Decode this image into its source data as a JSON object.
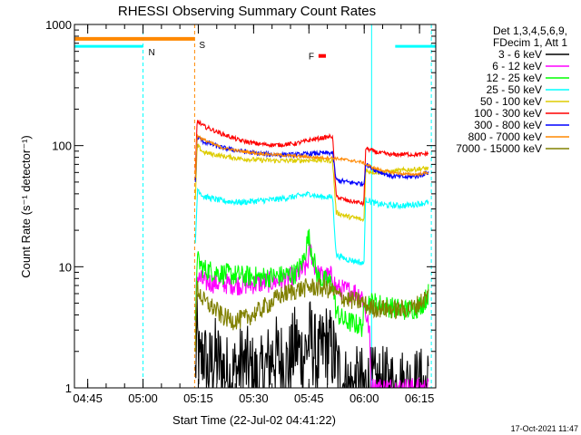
{
  "chart_data": {
    "type": "line",
    "title": "RHESSI Observing Summary Count Rates",
    "xlabel": "Start Time (22-Jul-02 04:41:22)",
    "ylabel": "Count Rate (s⁻¹ detector⁻¹)",
    "x_unit": "minutes after 04:41:22",
    "xlim": [
      0,
      98
    ],
    "ylim": [
      1,
      1000
    ],
    "yscale": "log",
    "x_ticks": [
      {
        "label": "04:45",
        "value": 3.6
      },
      {
        "label": "05:00",
        "value": 18.6
      },
      {
        "label": "05:15",
        "value": 33.6
      },
      {
        "label": "05:30",
        "value": 48.6
      },
      {
        "label": "05:45",
        "value": 63.6
      },
      {
        "label": "06:00",
        "value": 78.6
      },
      {
        "label": "06:15",
        "value": 93.6
      }
    ],
    "y_ticks": [
      {
        "label": "1",
        "value": 1
      },
      {
        "label": "10",
        "value": 10
      },
      {
        "label": "100",
        "value": 100
      },
      {
        "label": "1000",
        "value": 1000
      }
    ],
    "legend": {
      "position": "top-right",
      "header": [
        "Det 1,3,4,5,6,9,",
        "FDecim 1, Att 1"
      ]
    },
    "series": [
      {
        "name": "3 - 6 keV",
        "color": "#000000",
        "points": [
          [
            32.8,
            1.2
          ],
          [
            33.2,
            2.8
          ],
          [
            34,
            1.4
          ],
          [
            35,
            2.1
          ],
          [
            36,
            1.3
          ],
          [
            38,
            1.8
          ],
          [
            42,
            1.2
          ],
          [
            46,
            1.6
          ],
          [
            50,
            1.1
          ],
          [
            54,
            1.9
          ],
          [
            58,
            1.5
          ],
          [
            60,
            2.3
          ],
          [
            62,
            1.8
          ],
          [
            64,
            2.6
          ],
          [
            66,
            1.6
          ],
          [
            68,
            2.4
          ],
          [
            70,
            2.0
          ],
          [
            72,
            1.2
          ],
          [
            74,
            1.0
          ],
          [
            78,
            1.0
          ],
          [
            96,
            1.0
          ]
        ]
      },
      {
        "name": "6 - 12 keV",
        "color": "#ff00ff",
        "points": [
          [
            32.8,
            3.0
          ],
          [
            33.1,
            8.2
          ],
          [
            35,
            7.5
          ],
          [
            40,
            7.3
          ],
          [
            45,
            7.1
          ],
          [
            50,
            7.3
          ],
          [
            55,
            7.6
          ],
          [
            60,
            8.3
          ],
          [
            63,
            10.0
          ],
          [
            64,
            14.0
          ],
          [
            65,
            10.5
          ],
          [
            66,
            8.6
          ],
          [
            68,
            8.2
          ],
          [
            70,
            8.4
          ],
          [
            71,
            6.6
          ],
          [
            73,
            6.4
          ],
          [
            76,
            6.2
          ],
          [
            78,
            5.8
          ],
          [
            80,
            3.0
          ],
          [
            80.5,
            1.0
          ],
          [
            96,
            1.0
          ]
        ]
      },
      {
        "name": "12 - 25 keV",
        "color": "#00ff00",
        "points": [
          [
            32.8,
            3.0
          ],
          [
            33.2,
            11.5
          ],
          [
            35,
            9.6
          ],
          [
            40,
            8.8
          ],
          [
            45,
            8.4
          ],
          [
            50,
            8.2
          ],
          [
            55,
            8.3
          ],
          [
            60,
            8.8
          ],
          [
            62,
            11.0
          ],
          [
            63.5,
            18.0
          ],
          [
            64.5,
            13.0
          ],
          [
            66,
            8.2
          ],
          [
            68,
            7.6
          ],
          [
            70,
            7.4
          ],
          [
            71,
            4.2
          ],
          [
            73,
            3.6
          ],
          [
            76,
            3.4
          ],
          [
            78,
            3.2
          ],
          [
            79,
            5.2
          ],
          [
            82,
            5.0
          ],
          [
            86,
            4.6
          ],
          [
            90,
            4.4
          ],
          [
            93,
            4.6
          ],
          [
            95,
            5.2
          ],
          [
            96,
            6.0
          ]
        ]
      },
      {
        "name": "25 - 50 keV",
        "color": "#00ffff",
        "points": [
          [
            32.8,
            15
          ],
          [
            33.4,
            44
          ],
          [
            35,
            38
          ],
          [
            40,
            35
          ],
          [
            45,
            34
          ],
          [
            50,
            35
          ],
          [
            55,
            36
          ],
          [
            60,
            38
          ],
          [
            64,
            40
          ],
          [
            66,
            38
          ],
          [
            70,
            37.5
          ],
          [
            71,
            12.5
          ],
          [
            74,
            11.5
          ],
          [
            77,
            11.0
          ],
          [
            78.5,
            10.5
          ],
          [
            79,
            36
          ],
          [
            82,
            33
          ],
          [
            86,
            32
          ],
          [
            90,
            32
          ],
          [
            93,
            33
          ],
          [
            96,
            34
          ]
        ]
      },
      {
        "name": "50 - 100 keV",
        "color": "#ddcc00",
        "points": [
          [
            32.8,
            35
          ],
          [
            33.3,
            100
          ],
          [
            35,
            88
          ],
          [
            40,
            82
          ],
          [
            45,
            78
          ],
          [
            50,
            76
          ],
          [
            55,
            75
          ],
          [
            60,
            75
          ],
          [
            65,
            76
          ],
          [
            70,
            75
          ],
          [
            71,
            28
          ],
          [
            74,
            26
          ],
          [
            77,
            25
          ],
          [
            78.5,
            24
          ],
          [
            79,
            62
          ],
          [
            82,
            60
          ],
          [
            86,
            61
          ],
          [
            90,
            63
          ],
          [
            93,
            64
          ],
          [
            96,
            65
          ]
        ]
      },
      {
        "name": "100 - 300 keV",
        "color": "#ff0000",
        "points": [
          [
            32.8,
            60
          ],
          [
            33.3,
            160
          ],
          [
            35,
            145
          ],
          [
            40,
            125
          ],
          [
            45,
            110
          ],
          [
            50,
            103
          ],
          [
            55,
            101
          ],
          [
            60,
            104
          ],
          [
            65,
            113
          ],
          [
            69,
            118
          ],
          [
            70,
            120
          ],
          [
            71,
            38
          ],
          [
            74,
            35
          ],
          [
            77,
            34
          ],
          [
            78.5,
            33
          ],
          [
            79,
            95
          ],
          [
            82,
            88
          ],
          [
            86,
            84
          ],
          [
            90,
            85
          ],
          [
            93,
            84
          ],
          [
            96,
            86
          ]
        ]
      },
      {
        "name": "300 - 800 keV",
        "color": "#0000ff",
        "points": [
          [
            32.8,
            50
          ],
          [
            33.3,
            118
          ],
          [
            35,
            108
          ],
          [
            40,
            96
          ],
          [
            45,
            90
          ],
          [
            50,
            86
          ],
          [
            55,
            84
          ],
          [
            60,
            84
          ],
          [
            65,
            86
          ],
          [
            70,
            87
          ],
          [
            71,
            52
          ],
          [
            74,
            50
          ],
          [
            77,
            49
          ],
          [
            78.5,
            48
          ],
          [
            79,
            70
          ],
          [
            82,
            62
          ],
          [
            86,
            56
          ],
          [
            90,
            55
          ],
          [
            93,
            56
          ],
          [
            96,
            60
          ]
        ]
      },
      {
        "name": "800 - 7000 keV",
        "color": "#ff8800",
        "points": [
          [
            32.8,
            55
          ],
          [
            33.3,
            122
          ],
          [
            35,
            112
          ],
          [
            40,
            96
          ],
          [
            45,
            90
          ],
          [
            50,
            86
          ],
          [
            55,
            84
          ],
          [
            60,
            82
          ],
          [
            65,
            80
          ],
          [
            70,
            79
          ],
          [
            74,
            76
          ],
          [
            78,
            73
          ],
          [
            79,
            70
          ],
          [
            82,
            64
          ],
          [
            86,
            60
          ],
          [
            90,
            58
          ],
          [
            93,
            58
          ],
          [
            96,
            60
          ]
        ]
      },
      {
        "name": "7000 - 15000 keV",
        "color": "#808000",
        "points": [
          [
            32.8,
            2.0
          ],
          [
            33.2,
            6.8
          ],
          [
            35,
            5.2
          ],
          [
            38,
            4.5
          ],
          [
            40,
            3.9
          ],
          [
            43,
            3.6
          ],
          [
            46,
            3.7
          ],
          [
            50,
            4.3
          ],
          [
            53,
            5.0
          ],
          [
            56,
            5.8
          ],
          [
            60,
            6.4
          ],
          [
            64,
            6.8
          ],
          [
            68,
            6.6
          ],
          [
            70,
            6.4
          ],
          [
            71,
            5.9
          ],
          [
            74,
            5.4
          ],
          [
            78,
            5.1
          ],
          [
            80,
            4.6
          ],
          [
            84,
            4.5
          ],
          [
            88,
            4.4
          ],
          [
            92,
            4.6
          ],
          [
            96,
            5.8
          ]
        ]
      }
    ],
    "annotations": [
      {
        "text": "N",
        "meaning": "night",
        "color": "#00ffff",
        "segments": [
          [
            0,
            18.6
          ],
          [
            87,
            98
          ]
        ],
        "level": 660,
        "vlines": [
          0,
          18.6,
          80.6,
          96.8
        ]
      },
      {
        "text": "S",
        "meaning": "SAA",
        "color": "#ff8800",
        "segments": [
          [
            0,
            32.6
          ]
        ],
        "level": 760,
        "vlines": [
          32.6
        ]
      },
      {
        "text": "F",
        "meaning": "flare",
        "color": "#ff0000",
        "segments": [
          [
            66.2,
            68.2
          ]
        ],
        "level": 550
      }
    ],
    "timestamp": "17-Oct-2021 11:47"
  }
}
